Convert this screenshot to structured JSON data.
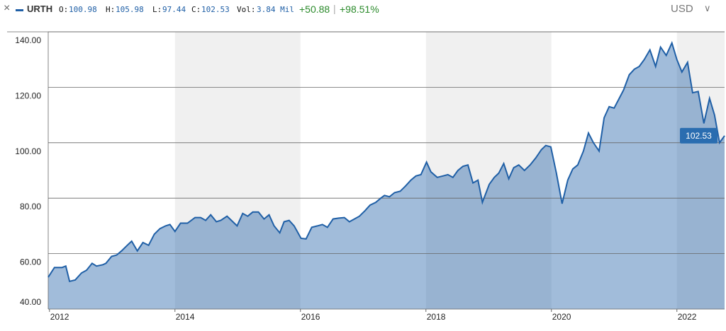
{
  "header": {
    "symbol": "URTH",
    "stats": [
      {
        "label": "O:",
        "value": "100.98"
      },
      {
        "label": "H:",
        "value": "105.98"
      },
      {
        "label": "L:",
        "value": "97.44"
      },
      {
        "label": "C:",
        "value": "102.53"
      },
      {
        "label": "Vol:",
        "value": "3.84 Mil"
      }
    ],
    "change": "+50.88",
    "change_percent": "+98.51%",
    "currency": "USD"
  },
  "chart_data": {
    "type": "area",
    "xlim": [
      2011.98,
      2022.76
    ],
    "ylim": [
      40,
      140
    ],
    "xticks": [
      2012,
      2014,
      2016,
      2018,
      2020,
      2022
    ],
    "yticks": [
      {
        "value": 40,
        "label": "40.00"
      },
      {
        "value": 60,
        "label": "60.00"
      },
      {
        "value": 80,
        "label": "80.00"
      },
      {
        "value": 100,
        "label": "100.00"
      },
      {
        "value": 120,
        "label": "120.00"
      },
      {
        "value": 140,
        "label": "140.00"
      }
    ],
    "grid": true,
    "shaded_bands": [
      [
        2014,
        2016
      ],
      [
        2018,
        2020
      ],
      [
        2022,
        2022.76
      ]
    ],
    "x": [
      2011.98,
      2012.08,
      2012.2,
      2012.26,
      2012.32,
      2012.41,
      2012.51,
      2012.59,
      2012.68,
      2012.75,
      2012.85,
      2012.9,
      2012.99,
      2013.07,
      2013.15,
      2013.24,
      2013.31,
      2013.4,
      2013.49,
      2013.58,
      2013.67,
      2013.76,
      2013.85,
      2013.92,
      2014.0,
      2014.09,
      2014.2,
      2014.32,
      2014.41,
      2014.49,
      2014.57,
      2014.66,
      2014.73,
      2014.83,
      2014.9,
      2014.99,
      2015.08,
      2015.16,
      2015.24,
      2015.33,
      2015.42,
      2015.5,
      2015.58,
      2015.67,
      2015.74,
      2015.82,
      2015.9,
      2016.01,
      2016.09,
      2016.18,
      2016.27,
      2016.35,
      2016.43,
      2016.52,
      2016.61,
      2016.7,
      2016.78,
      2016.86,
      2016.94,
      2017.03,
      2017.11,
      2017.2,
      2017.28,
      2017.34,
      2017.42,
      2017.5,
      2017.59,
      2017.68,
      2017.76,
      2017.84,
      2017.92,
      2018.01,
      2018.08,
      2018.18,
      2018.27,
      2018.35,
      2018.43,
      2018.51,
      2018.59,
      2018.67,
      2018.75,
      2018.83,
      2018.9,
      2019.01,
      2019.09,
      2019.16,
      2019.24,
      2019.32,
      2019.4,
      2019.48,
      2019.57,
      2019.66,
      2019.75,
      2019.84,
      2019.91,
      2019.99,
      2020.08,
      2020.17,
      2020.26,
      2020.34,
      2020.42,
      2020.51,
      2020.59,
      2020.67,
      2020.76,
      2020.84,
      2020.92,
      2021.0,
      2021.07,
      2021.15,
      2021.24,
      2021.32,
      2021.4,
      2021.48,
      2021.57,
      2021.66,
      2021.74,
      2021.83,
      2021.92,
      2022.0,
      2022.08,
      2022.17,
      2022.25,
      2022.34,
      2022.43,
      2022.52,
      2022.6,
      2022.68,
      2022.76
    ],
    "series": [
      {
        "name": "URTH",
        "color": "#1f5fa6",
        "values": [
          51.5,
          55,
          55,
          55.5,
          50,
          50.5,
          53,
          54,
          56.5,
          55.5,
          56,
          56.5,
          59,
          59.5,
          61,
          63,
          64.5,
          61,
          64,
          63,
          67,
          69,
          70,
          70.5,
          68,
          71,
          71,
          73,
          73,
          72,
          74,
          71.5,
          72,
          73.5,
          72,
          70,
          74.5,
          73.5,
          75,
          75,
          72.5,
          74,
          70,
          67.5,
          71.5,
          72,
          70,
          65.5,
          65.3,
          69.5,
          70,
          70.5,
          69.5,
          72.5,
          72.8,
          73,
          71.5,
          72.5,
          73.5,
          75.5,
          77.5,
          78.5,
          80,
          81,
          80.5,
          82,
          82.5,
          84.5,
          86.5,
          88,
          88.5,
          93,
          89.5,
          87.5,
          88,
          88.5,
          87.5,
          90,
          91.5,
          92,
          85.5,
          86.5,
          78.5,
          85,
          87.5,
          89,
          92.5,
          87,
          91,
          92,
          90,
          92,
          94.5,
          97.5,
          99,
          98.5,
          89,
          78,
          86.5,
          90.5,
          92,
          97,
          103.5,
          100,
          97,
          109,
          113,
          112.5,
          115.5,
          119,
          124.5,
          126.5,
          127.5,
          130,
          133.5,
          127.5,
          134.5,
          131.5,
          136,
          130,
          125.5,
          129,
          118,
          118.5,
          107,
          116,
          110,
          100,
          102.53
        ]
      }
    ]
  }
}
